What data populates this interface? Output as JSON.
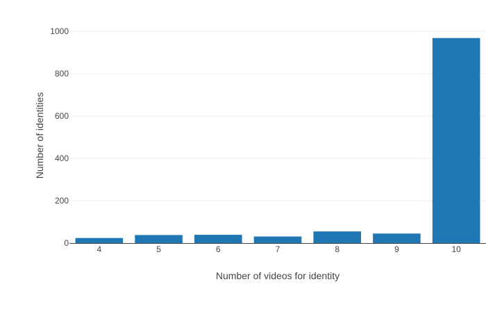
{
  "chart_data": {
    "type": "bar",
    "categories": [
      "4",
      "5",
      "6",
      "7",
      "8",
      "9",
      "10"
    ],
    "values": [
      24,
      38,
      39,
      31,
      55,
      45,
      968
    ],
    "xlabel": "Number of videos for identity",
    "ylabel": "Number of identities",
    "ylim": [
      0,
      1000
    ],
    "yticks": [
      0,
      200,
      400,
      600,
      800,
      1000
    ],
    "grid": true,
    "legend": "none",
    "colors": {
      "bar": "#1f77b4",
      "grid": "#eeeeee",
      "axis_line": "#444444",
      "text": "#444444"
    }
  }
}
